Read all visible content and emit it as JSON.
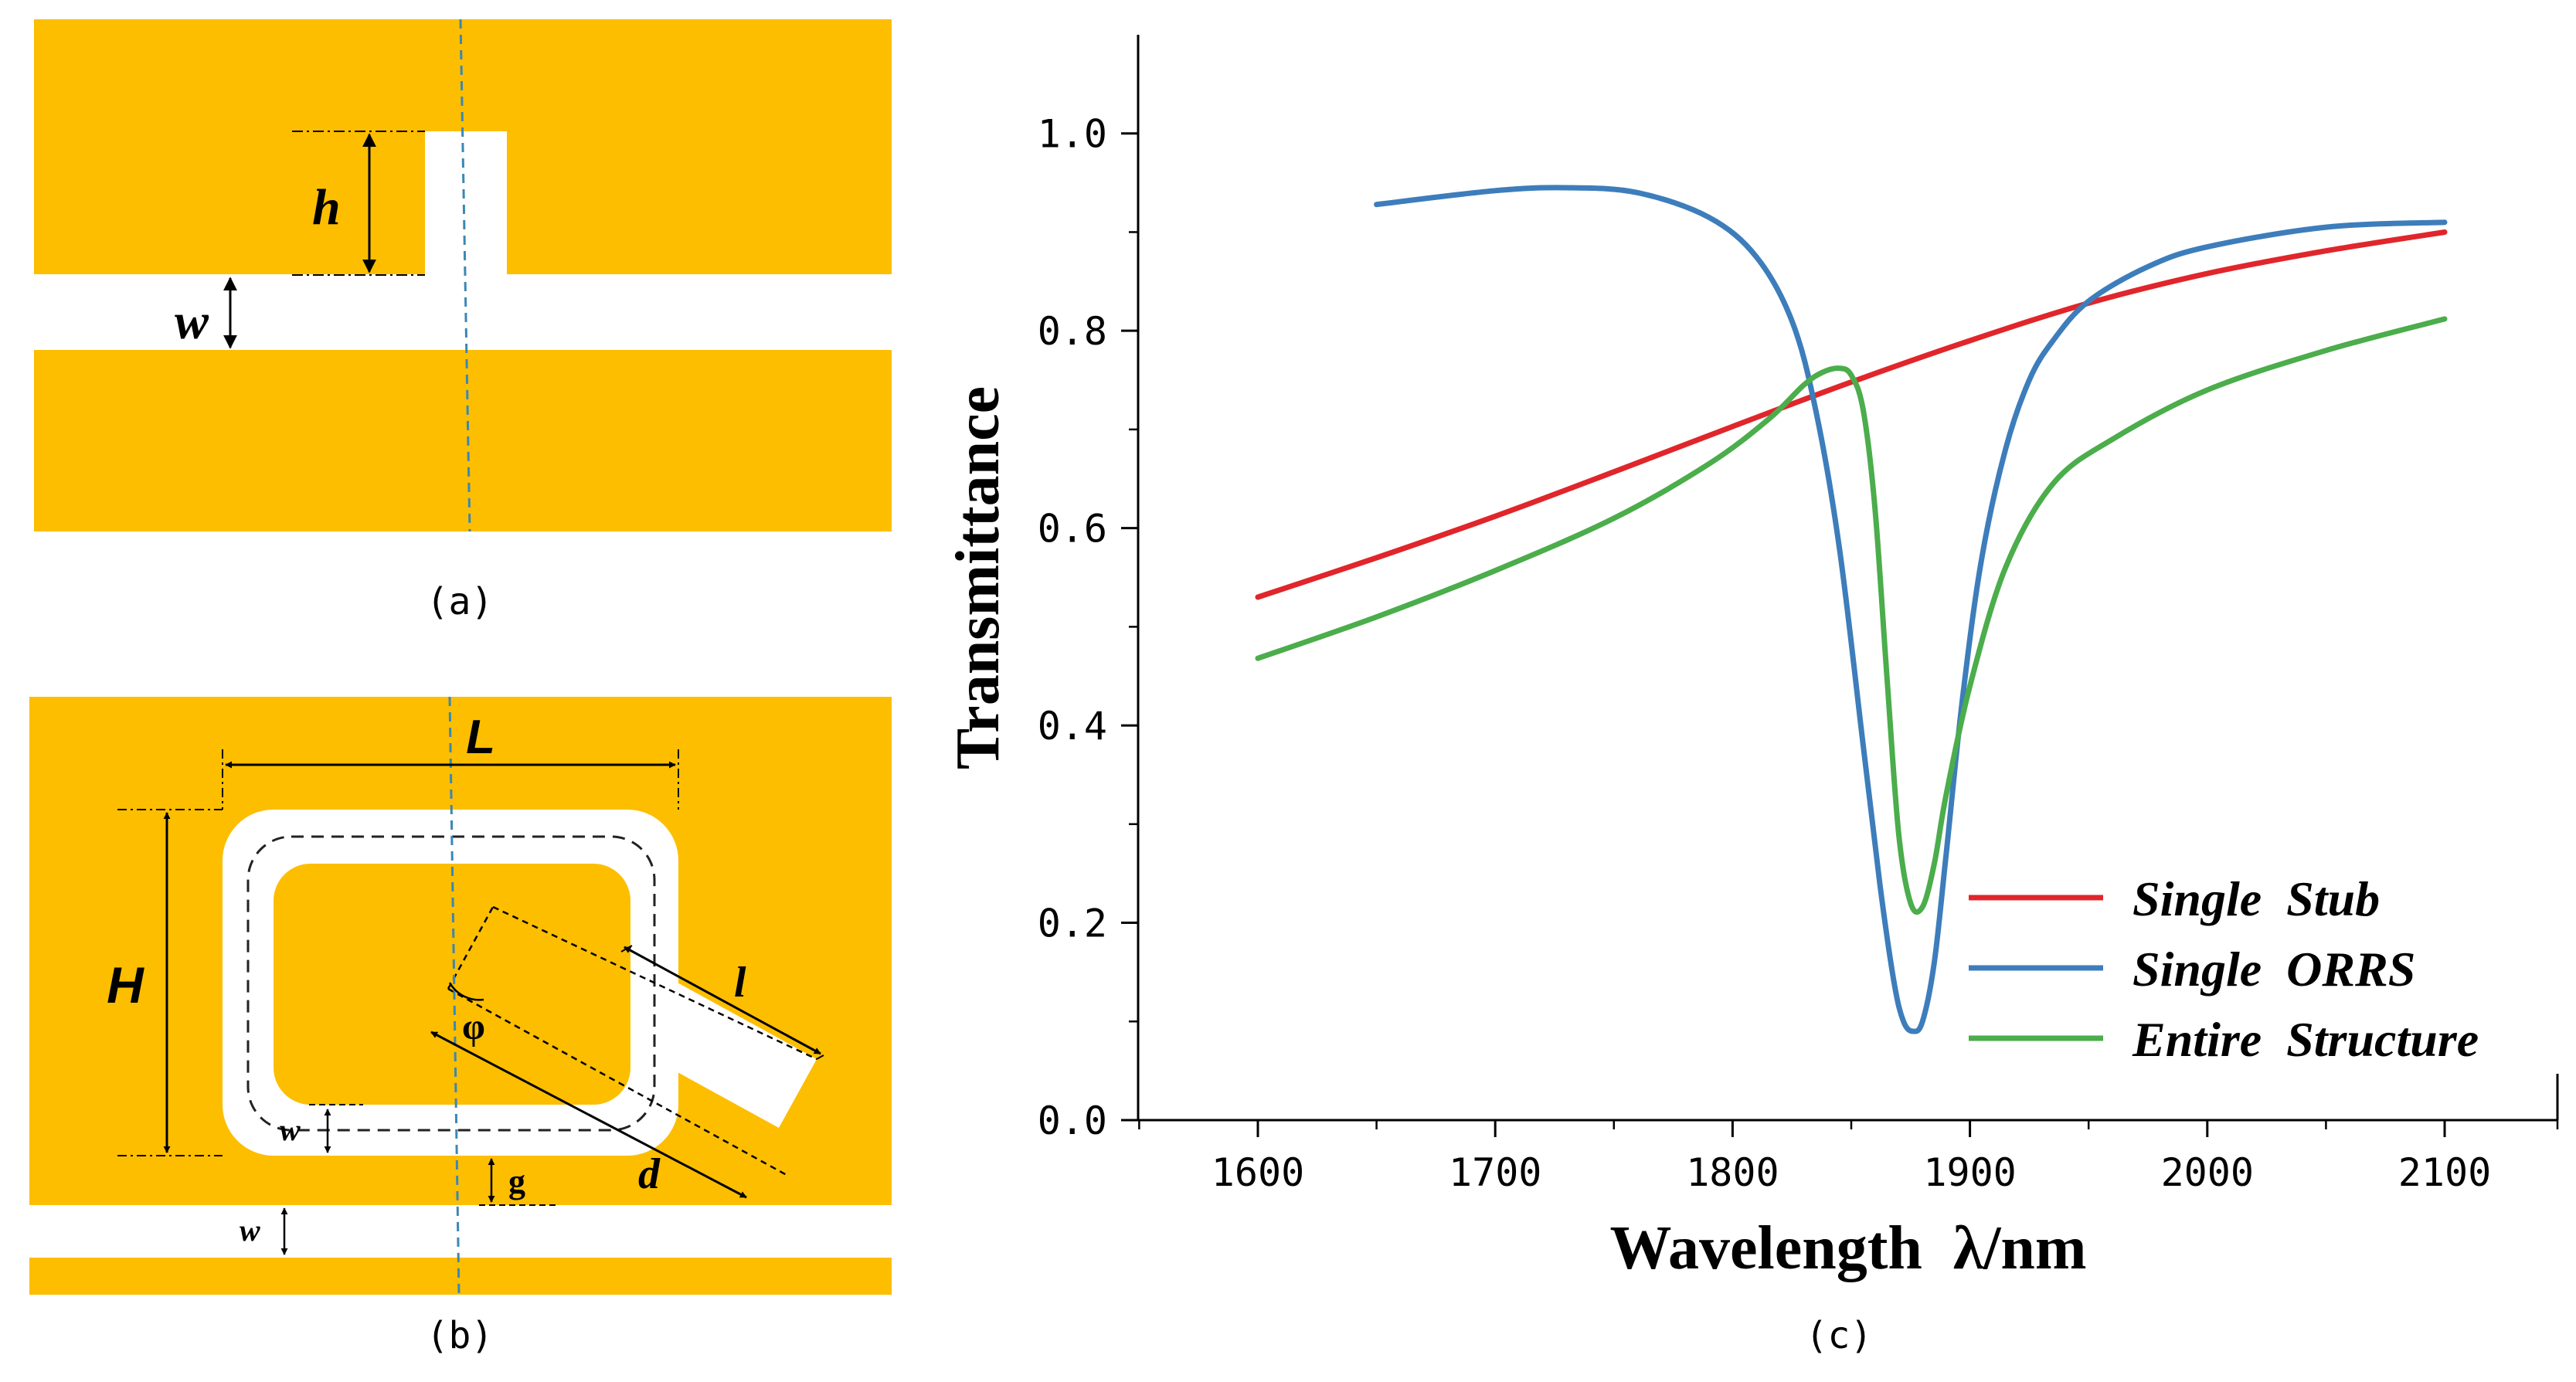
{
  "panel_a": {
    "caption": "(a)",
    "labels": {
      "h": "h",
      "w": "w"
    }
  },
  "panel_b": {
    "caption": "(b)",
    "labels": {
      "L": "L",
      "H": "H",
      "l": "l",
      "phi": "φ",
      "d": "d",
      "w1": "w",
      "g": "g",
      "w2": "w"
    }
  },
  "panel_c": {
    "caption": "(c)"
  },
  "colors": {
    "gold": "#FDBE00",
    "single_stub": "#E0262B",
    "single_orrs": "#3D7DBB",
    "entire_structure": "#4BAD4B",
    "dash_line": "#3A87B5"
  },
  "chart_data": {
    "type": "line",
    "xlabel": "Wavelength  λ/nm",
    "ylabel": "Transmittance",
    "xlim": [
      1550,
      2150
    ],
    "ylim": [
      0.0,
      1.1
    ],
    "xticks": [
      1600,
      1700,
      1800,
      1900,
      2000,
      2100
    ],
    "yticks": [
      0.0,
      0.2,
      0.4,
      0.6,
      0.8,
      1.0
    ],
    "xtick_labels": [
      "1600",
      "1700",
      "1800",
      "1900",
      "2000",
      "2100"
    ],
    "ytick_labels": [
      "0.0",
      "0.2",
      "0.4",
      "0.6",
      "0.8",
      "1.0"
    ],
    "legend_position": "bottom-right",
    "series": [
      {
        "name": "Single  Stub",
        "color": "#E0262B",
        "x": [
          1600,
          1650,
          1700,
          1750,
          1800,
          1850,
          1900,
          1950,
          2000,
          2050,
          2100
        ],
        "y": [
          0.53,
          0.57,
          0.612,
          0.657,
          0.703,
          0.748,
          0.79,
          0.828,
          0.858,
          0.881,
          0.9
        ]
      },
      {
        "name": "Single  ORRS",
        "color": "#3D7DBB",
        "x": [
          1650,
          1700,
          1730,
          1760,
          1790,
          1810,
          1825,
          1835,
          1845,
          1855,
          1862,
          1868,
          1872,
          1876,
          1880,
          1885,
          1890,
          1897,
          1905,
          1915,
          1925,
          1935,
          1950,
          1975,
          2000,
          2050,
          2100
        ],
        "y": [
          0.928,
          0.942,
          0.945,
          0.94,
          0.915,
          0.875,
          0.81,
          0.72,
          0.58,
          0.38,
          0.24,
          0.14,
          0.1,
          0.09,
          0.1,
          0.16,
          0.27,
          0.43,
          0.57,
          0.68,
          0.75,
          0.79,
          0.83,
          0.865,
          0.885,
          0.905,
          0.91
        ]
      },
      {
        "name": "Entire  Structure",
        "color": "#4BAD4B",
        "x": [
          1600,
          1650,
          1700,
          1750,
          1790,
          1815,
          1830,
          1838,
          1845,
          1850,
          1855,
          1860,
          1865,
          1870,
          1875,
          1880,
          1885,
          1890,
          1900,
          1915,
          1935,
          1960,
          2000,
          2050,
          2100
        ],
        "y": [
          0.468,
          0.51,
          0.557,
          0.61,
          0.665,
          0.71,
          0.745,
          0.758,
          0.762,
          0.755,
          0.72,
          0.62,
          0.45,
          0.29,
          0.22,
          0.216,
          0.26,
          0.33,
          0.44,
          0.56,
          0.645,
          0.69,
          0.74,
          0.78,
          0.812
        ]
      }
    ]
  }
}
